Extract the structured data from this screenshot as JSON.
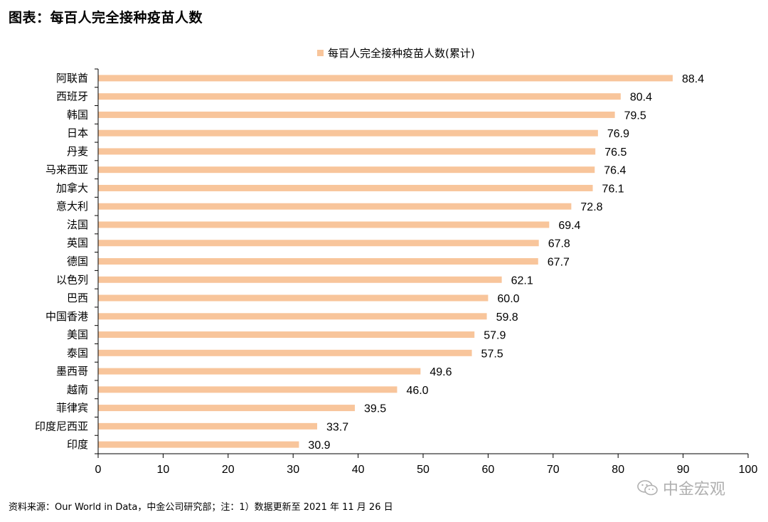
{
  "title": "图表：每百人完全接种疫苗人数",
  "source": "资料来源：Our World in Data，中金公司研究部；注：1）数据更新至 2021 年 11 月 26 日",
  "watermark": "中金宏观",
  "icons": {
    "watermark": "wechat-icon"
  },
  "colors": {
    "bar": "#F8C59B",
    "axis": "#000000"
  },
  "chart_data": {
    "type": "bar",
    "orientation": "horizontal",
    "categories": [
      "阿联酋",
      "西班牙",
      "韩国",
      "日本",
      "丹麦",
      "马来西亚",
      "加拿大",
      "意大利",
      "法国",
      "英国",
      "德国",
      "以色列",
      "巴西",
      "中国香港",
      "美国",
      "泰国",
      "墨西哥",
      "越南",
      "菲律宾",
      "印度尼西亚",
      "印度"
    ],
    "series": [
      {
        "name": "每百人完全接种疫苗人数(累计)",
        "values": [
          88.4,
          80.4,
          79.5,
          76.9,
          76.5,
          76.4,
          76.1,
          72.8,
          69.4,
          67.8,
          67.7,
          62.1,
          60.0,
          59.8,
          57.9,
          57.5,
          49.6,
          46.0,
          39.5,
          33.7,
          30.9
        ]
      }
    ],
    "value_labels": [
      "88.4",
      "80.4",
      "79.5",
      "76.9",
      "76.5",
      "76.4",
      "76.1",
      "72.8",
      "69.4",
      "67.8",
      "67.7",
      "62.1",
      "60.0",
      "59.8",
      "57.9",
      "57.5",
      "49.6",
      "46.0",
      "39.5",
      "33.7",
      "30.9"
    ],
    "xticks": [
      0,
      10,
      20,
      30,
      40,
      50,
      60,
      70,
      80,
      90,
      100
    ],
    "xlim": [
      0,
      100
    ],
    "grid": false,
    "legend": "top-center"
  }
}
